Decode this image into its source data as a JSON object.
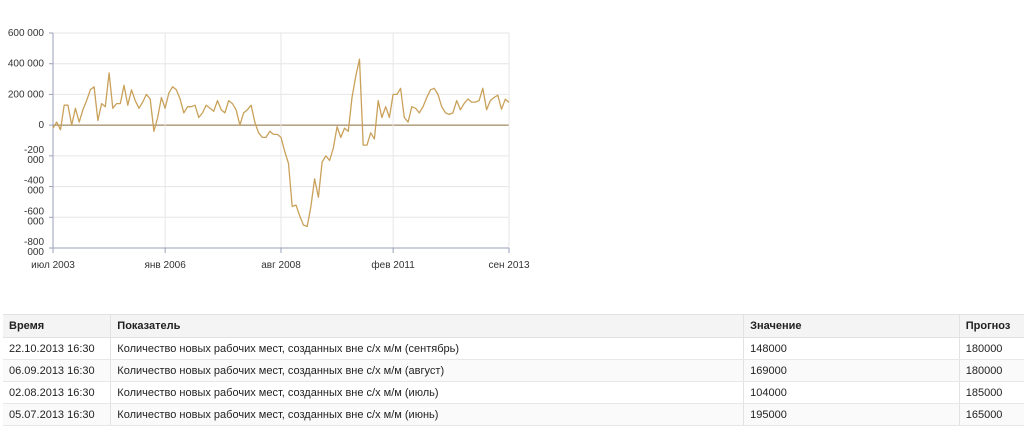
{
  "chart_data": {
    "type": "line",
    "y_ticks": [
      "600 000",
      "400 000",
      "200 000",
      "0",
      "-200\n000",
      "-400\n000",
      "-600\n000",
      "-800\n000"
    ],
    "y_values": [
      600000,
      400000,
      200000,
      0,
      -200000,
      -400000,
      -600000,
      -800000
    ],
    "ylim": [
      -800000,
      600000
    ],
    "x_ticks": [
      {
        "label": "июл 2003",
        "date": "2003-07"
      },
      {
        "label": "янв 2006",
        "date": "2006-01"
      },
      {
        "label": "авг 2008",
        "date": "2008-08"
      },
      {
        "label": "фев 2011",
        "date": "2011-02"
      },
      {
        "label": "сен 2013",
        "date": "2013-09"
      }
    ],
    "xlim": [
      "2003-07",
      "2013-09"
    ],
    "grid": true,
    "series": [
      {
        "color": "#c9a15a",
        "points": [
          [
            "2003-07",
            -20000
          ],
          [
            "2003-08",
            20000
          ],
          [
            "2003-09",
            -30000
          ],
          [
            "2003-10",
            130000
          ],
          [
            "2003-11",
            130000
          ],
          [
            "2003-12",
            0
          ],
          [
            "2004-01",
            110000
          ],
          [
            "2004-02",
            20000
          ],
          [
            "2004-03",
            100000
          ],
          [
            "2004-04",
            160000
          ],
          [
            "2004-05",
            230000
          ],
          [
            "2004-06",
            250000
          ],
          [
            "2004-07",
            30000
          ],
          [
            "2004-08",
            140000
          ],
          [
            "2004-09",
            120000
          ],
          [
            "2004-10",
            340000
          ],
          [
            "2004-11",
            110000
          ],
          [
            "2004-12",
            140000
          ],
          [
            "2005-01",
            140000
          ],
          [
            "2005-02",
            260000
          ],
          [
            "2005-03",
            130000
          ],
          [
            "2005-04",
            230000
          ],
          [
            "2005-05",
            160000
          ],
          [
            "2005-06",
            110000
          ],
          [
            "2005-07",
            150000
          ],
          [
            "2005-08",
            200000
          ],
          [
            "2005-09",
            170000
          ],
          [
            "2005-10",
            -40000
          ],
          [
            "2005-11",
            50000
          ],
          [
            "2005-12",
            180000
          ],
          [
            "2006-01",
            110000
          ],
          [
            "2006-02",
            210000
          ],
          [
            "2006-03",
            250000
          ],
          [
            "2006-04",
            230000
          ],
          [
            "2006-05",
            170000
          ],
          [
            "2006-06",
            80000
          ],
          [
            "2006-07",
            120000
          ],
          [
            "2006-08",
            120000
          ],
          [
            "2006-09",
            130000
          ],
          [
            "2006-10",
            50000
          ],
          [
            "2006-11",
            80000
          ],
          [
            "2006-12",
            130000
          ],
          [
            "2007-01",
            110000
          ],
          [
            "2007-02",
            90000
          ],
          [
            "2007-03",
            160000
          ],
          [
            "2007-04",
            100000
          ],
          [
            "2007-05",
            80000
          ],
          [
            "2007-06",
            160000
          ],
          [
            "2007-07",
            140000
          ],
          [
            "2007-08",
            100000
          ],
          [
            "2007-09",
            0
          ],
          [
            "2007-10",
            80000
          ],
          [
            "2007-11",
            100000
          ],
          [
            "2007-12",
            130000
          ],
          [
            "2008-01",
            20000
          ],
          [
            "2008-02",
            -50000
          ],
          [
            "2008-03",
            -80000
          ],
          [
            "2008-04",
            -80000
          ],
          [
            "2008-05",
            -40000
          ],
          [
            "2008-06",
            -60000
          ],
          [
            "2008-07",
            -60000
          ],
          [
            "2008-08",
            -80000
          ],
          [
            "2008-09",
            -170000
          ],
          [
            "2008-10",
            -250000
          ],
          [
            "2008-11",
            -530000
          ],
          [
            "2008-12",
            -520000
          ],
          [
            "2009-01",
            -590000
          ],
          [
            "2009-02",
            -650000
          ],
          [
            "2009-03",
            -660000
          ],
          [
            "2009-04",
            -530000
          ],
          [
            "2009-05",
            -350000
          ],
          [
            "2009-06",
            -470000
          ],
          [
            "2009-07",
            -240000
          ],
          [
            "2009-08",
            -200000
          ],
          [
            "2009-09",
            -230000
          ],
          [
            "2009-10",
            -150000
          ],
          [
            "2009-11",
            -10000
          ],
          [
            "2009-12",
            -80000
          ],
          [
            "2010-01",
            -20000
          ],
          [
            "2010-02",
            -40000
          ],
          [
            "2010-03",
            180000
          ],
          [
            "2010-04",
            320000
          ],
          [
            "2010-05",
            430000
          ],
          [
            "2010-06",
            -130000
          ],
          [
            "2010-07",
            -130000
          ],
          [
            "2010-08",
            -50000
          ],
          [
            "2010-09",
            -90000
          ],
          [
            "2010-10",
            160000
          ],
          [
            "2010-11",
            50000
          ],
          [
            "2010-12",
            120000
          ],
          [
            "2011-01",
            50000
          ],
          [
            "2011-02",
            200000
          ],
          [
            "2011-03",
            200000
          ],
          [
            "2011-04",
            240000
          ],
          [
            "2011-05",
            50000
          ],
          [
            "2011-06",
            20000
          ],
          [
            "2011-07",
            120000
          ],
          [
            "2011-08",
            110000
          ],
          [
            "2011-09",
            80000
          ],
          [
            "2011-10",
            120000
          ],
          [
            "2011-11",
            180000
          ],
          [
            "2011-12",
            230000
          ],
          [
            "2012-01",
            240000
          ],
          [
            "2012-02",
            200000
          ],
          [
            "2012-03",
            120000
          ],
          [
            "2012-04",
            80000
          ],
          [
            "2012-05",
            70000
          ],
          [
            "2012-06",
            80000
          ],
          [
            "2012-07",
            160000
          ],
          [
            "2012-08",
            100000
          ],
          [
            "2012-09",
            140000
          ],
          [
            "2012-10",
            170000
          ],
          [
            "2012-11",
            150000
          ],
          [
            "2012-12",
            150000
          ],
          [
            "2013-01",
            160000
          ],
          [
            "2013-02",
            240000
          ],
          [
            "2013-03",
            100000
          ],
          [
            "2013-04",
            160000
          ],
          [
            "2013-05",
            180000
          ],
          [
            "2013-06",
            195000
          ],
          [
            "2013-07",
            104000
          ],
          [
            "2013-08",
            169000
          ],
          [
            "2013-09",
            148000
          ]
        ]
      }
    ]
  },
  "table": {
    "headers": {
      "time": "Время",
      "indicator": "Показатель",
      "value": "Значение",
      "forecast": "Прогноз"
    },
    "rows": [
      {
        "time": "22.10.2013 16:30",
        "indicator": "Количество новых рабочих мест, созданных вне с/х м/м (сентябрь)",
        "value": "148000",
        "forecast": "180000"
      },
      {
        "time": "06.09.2013 16:30",
        "indicator": "Количество новых рабочих мест, созданных вне с/х м/м (август)",
        "value": "169000",
        "forecast": "180000"
      },
      {
        "time": "02.08.2013 16:30",
        "indicator": "Количество новых рабочих мест, созданных вне с/х м/м (июль)",
        "value": "104000",
        "forecast": "185000"
      },
      {
        "time": "05.07.2013 16:30",
        "indicator": "Количество новых рабочих мест, созданных вне с/х м/м (июнь)",
        "value": "195000",
        "forecast": "165000"
      }
    ]
  }
}
